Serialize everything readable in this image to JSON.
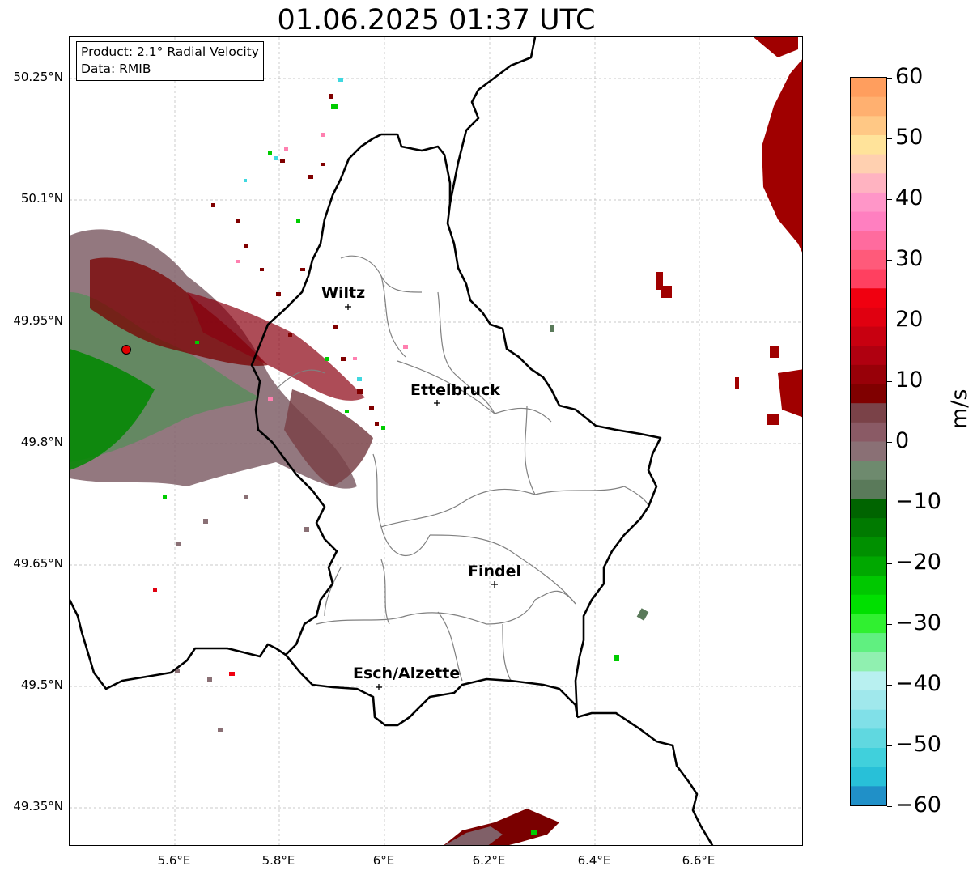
{
  "title": "01.06.2025 01:37 UTC",
  "info": {
    "product": "Product: 2.1° Radial Velocity",
    "data": "Data: RMIB"
  },
  "map": {
    "lat_labels": [
      "50.25°N",
      "50.1°N",
      "49.95°N",
      "49.8°N",
      "49.65°N",
      "49.5°N",
      "49.35°N"
    ],
    "lon_labels": [
      "5.6°E",
      "5.8°E",
      "6°E",
      "6.2°E",
      "6.4°E",
      "6.6°E"
    ],
    "cities": [
      {
        "name": "Wiltz"
      },
      {
        "name": "Ettelbruck"
      },
      {
        "name": "Findel"
      },
      {
        "name": "Esch/Alzette"
      }
    ],
    "colors": {
      "border": "#000000",
      "canton_lines": "#808080",
      "grid": "#b0b0b0",
      "radar_site": "#e00000"
    }
  },
  "colorbar": {
    "label": "m/s",
    "ticks": [
      "60",
      "50",
      "40",
      "30",
      "20",
      "10",
      "0",
      "−10",
      "−20",
      "−30",
      "−40",
      "−50",
      "−60"
    ],
    "range": [
      -60,
      60
    ],
    "colors_top_to_bottom": [
      "#ff9e5e",
      "#ffb070",
      "#ffc885",
      "#ffe39a",
      "#ffd0b0",
      "#ffb3c1",
      "#ff96c8",
      "#ff7fc0",
      "#ff6b9e",
      "#ff5a7a",
      "#ff4060",
      "#f00010",
      "#e00010",
      "#c80010",
      "#b00010",
      "#980008",
      "#800000",
      "#7a4248",
      "#8a5a65",
      "#8a7075",
      "#6e8a6e",
      "#5a7a5a",
      "#006400",
      "#007a00",
      "#009000",
      "#00a800",
      "#00c800",
      "#00e000",
      "#30f030",
      "#60f080",
      "#90f0b0",
      "#b8f0f0",
      "#a0e8ec",
      "#80e0e8",
      "#60d8e0",
      "#40d0dc",
      "#28c0d8",
      "#2090c8"
    ]
  }
}
